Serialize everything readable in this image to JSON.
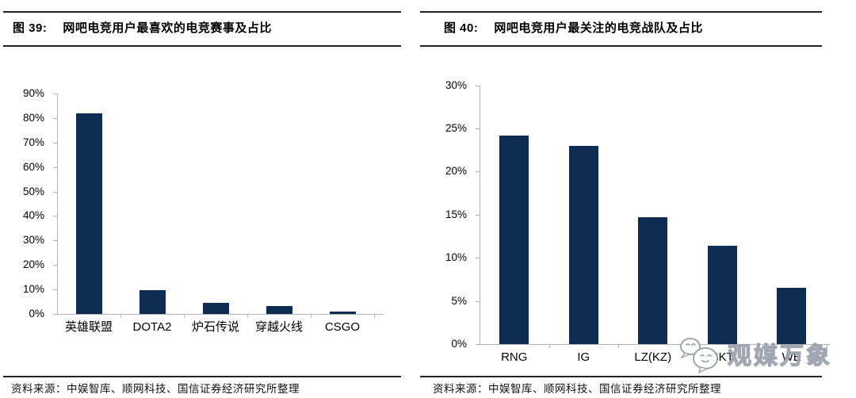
{
  "panels": [
    {
      "figure_label": "图 39:",
      "title": "网吧电竞用户最喜欢的电竞赛事及占比",
      "source": "资料来源：中娱智库、顺网科技、国信证券经济研究所整理"
    },
    {
      "figure_label": "图 40:",
      "title": "网吧电竞用户最关注的电竞战队及占比",
      "source": "资料来源：中娱智库、顺网科技、国信证券经济研究所整理"
    }
  ],
  "watermark": {
    "text": "观媒万象",
    "icon": "wechat-chat-bubbles-icon"
  },
  "colors": {
    "bar": "#0e2b52",
    "axis": "#b3b3b3",
    "rule": "#222222",
    "text": "#000000",
    "watermark_outline": "#9aa1ab"
  },
  "chart_data": [
    {
      "type": "bar",
      "title": "网吧电竞用户最喜欢的电竞赛事及占比",
      "categories": [
        "英雄联盟",
        "DOTA2",
        "炉石传说",
        "穿越火线",
        "CSGO"
      ],
      "values": [
        82,
        9.8,
        4.6,
        3.2,
        1.0
      ],
      "unit": "%",
      "xlabel": "",
      "ylabel": "",
      "ylim": [
        0,
        90
      ],
      "ytick_step": 10,
      "ytick_labels": [
        "0%",
        "10%",
        "20%",
        "30%",
        "40%",
        "50%",
        "60%",
        "70%",
        "80%",
        "90%"
      ],
      "grid": false,
      "legend": null
    },
    {
      "type": "bar",
      "title": "网吧电竞用户最关注的电竞战队及占比",
      "categories": [
        "RNG",
        "IG",
        "LZ(KZ)",
        "SKT",
        "WE"
      ],
      "values": [
        24.2,
        23.0,
        14.7,
        11.4,
        6.5
      ],
      "unit": "%",
      "xlabel": "",
      "ylabel": "",
      "ylim": [
        0,
        30
      ],
      "ytick_step": 5,
      "ytick_labels": [
        "0%",
        "5%",
        "10%",
        "15%",
        "20%",
        "25%",
        "30%"
      ],
      "grid": false,
      "legend": null
    }
  ]
}
